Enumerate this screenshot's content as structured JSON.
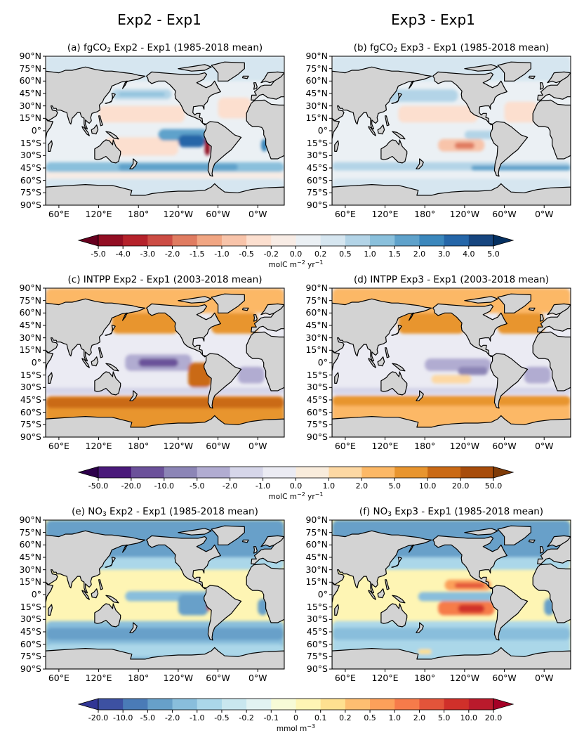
{
  "column_titles": [
    "Exp2 - Exp1",
    "Exp3 - Exp1"
  ],
  "chart_data": {
    "type": "heatmap",
    "projection": "PlateCarree",
    "lon_range": [
      40,
      400
    ],
    "lat_range": [
      -90,
      90
    ],
    "xticks": [
      "60°E",
      "120°E",
      "180°",
      "120°W",
      "60°W",
      "0°W"
    ],
    "xtick_values": [
      60,
      120,
      180,
      240,
      300,
      360
    ],
    "yticks": [
      "90°N",
      "75°N",
      "60°N",
      "45°N",
      "30°N",
      "15°N",
      "0°",
      "15°S",
      "30°S",
      "45°S",
      "60°S",
      "75°S",
      "90°S"
    ],
    "ytick_values": [
      90,
      75,
      60,
      45,
      30,
      15,
      0,
      -15,
      -30,
      -45,
      -60,
      -75,
      -90
    ],
    "land_color": "#d3d3d3",
    "panels": [
      {
        "id": "a",
        "label_prefix": "(a) fgCO",
        "label_sub": "2",
        "label_suffix": " Exp2 - Exp1 (1985-2018 mean)",
        "variable": "fgCO2",
        "colorbar": 0,
        "background_level": 8,
        "regions": [
          {
            "lon": [
              40,
              400
            ],
            "lat": [
              60,
              90
            ],
            "level": 9
          },
          {
            "lon": [
              40,
              400
            ],
            "lat": [
              -90,
              -58
            ],
            "level": 9
          },
          {
            "lon": [
              40,
              400
            ],
            "lat": [
              -50,
              -38
            ],
            "level": 11
          },
          {
            "lon": [
              150,
              330
            ],
            "lat": [
              -48,
              -40
            ],
            "level": 12
          },
          {
            "lon": [
              40,
              400
            ],
            "lat": [
              -58,
              -50
            ],
            "level": 7
          },
          {
            "lon": [
              140,
              230
            ],
            "lat": [
              38,
              50
            ],
            "level": 10
          },
          {
            "lon": [
              150,
              220
            ],
            "lat": [
              42,
              46
            ],
            "level": 11
          },
          {
            "lon": [
              120,
              250
            ],
            "lat": [
              10,
              30
            ],
            "level": 6
          },
          {
            "lon": [
              130,
              240
            ],
            "lat": [
              -30,
              -8
            ],
            "level": 6
          },
          {
            "lon": [
              210,
              285
            ],
            "lat": [
              -12,
              2
            ],
            "level": 12
          },
          {
            "lon": [
              240,
              280
            ],
            "lat": [
              -20,
              -5
            ],
            "level": 14
          },
          {
            "lon": [
              280,
              288
            ],
            "lat": [
              -30,
              -5
            ],
            "level": 0
          },
          {
            "lon": [
              300,
              350
            ],
            "lat": [
              15,
              40
            ],
            "level": 6
          },
          {
            "lon": [
              365,
              375
            ],
            "lat": [
              -25,
              -10
            ],
            "level": 13
          }
        ]
      },
      {
        "id": "b",
        "label_prefix": "(b) fgCO",
        "label_sub": "2",
        "label_suffix": " Exp3 - Exp1 (1985-2018 mean)",
        "variable": "fgCO2",
        "colorbar": 0,
        "background_level": 8,
        "regions": [
          {
            "lon": [
              40,
              400
            ],
            "lat": [
              60,
              90
            ],
            "level": 9
          },
          {
            "lon": [
              40,
              400
            ],
            "lat": [
              -90,
              -58
            ],
            "level": 9
          },
          {
            "lon": [
              40,
              400
            ],
            "lat": [
              -48,
              -38
            ],
            "level": 10
          },
          {
            "lon": [
              250,
              400
            ],
            "lat": [
              -48,
              -42
            ],
            "level": 12
          },
          {
            "lon": [
              120,
              230
            ],
            "lat": [
              35,
              50
            ],
            "level": 10
          },
          {
            "lon": [
              140,
              260
            ],
            "lat": [
              10,
              30
            ],
            "level": 6
          },
          {
            "lon": [
              200,
              270
            ],
            "lat": [
              -25,
              -10
            ],
            "level": 5
          },
          {
            "lon": [
              225,
              255
            ],
            "lat": [
              -22,
              -14
            ],
            "level": 3
          },
          {
            "lon": [
              240,
              285
            ],
            "lat": [
              -10,
              0
            ],
            "level": 10
          },
          {
            "lon": [
              300,
              350
            ],
            "lat": [
              10,
              35
            ],
            "level": 6
          }
        ]
      },
      {
        "id": "c",
        "label_prefix": "(c) INTPP Exp2 - Exp1 (2003-2018 mean)",
        "label_sub": "",
        "label_suffix": "",
        "variable": "INTPP",
        "colorbar": 1,
        "background_level": 5,
        "regions": [
          {
            "lon": [
              40,
              400
            ],
            "lat": [
              60,
              90
            ],
            "level": 8
          },
          {
            "lon": [
              40,
              400
            ],
            "lat": [
              -90,
              -40
            ],
            "level": 9
          },
          {
            "lon": [
              40,
              400
            ],
            "lat": [
              -55,
              -42
            ],
            "level": 10
          },
          {
            "lon": [
              140,
              240
            ],
            "lat": [
              35,
              60
            ],
            "level": 9
          },
          {
            "lon": [
              290,
              360
            ],
            "lat": [
              35,
              60
            ],
            "level": 9
          },
          {
            "lon": [
              40,
              400
            ],
            "lat": [
              -38,
              -30
            ],
            "level": 4
          },
          {
            "lon": [
              160,
              260
            ],
            "lat": [
              -10,
              10
            ],
            "level": 3
          },
          {
            "lon": [
              180,
              240
            ],
            "lat": [
              -5,
              5
            ],
            "level": 1
          },
          {
            "lon": [
              255,
              290
            ],
            "lat": [
              -30,
              0
            ],
            "level": 10
          },
          {
            "lon": [
              330,
              370
            ],
            "lat": [
              -25,
              -5
            ],
            "level": 3
          }
        ]
      },
      {
        "id": "d",
        "label_prefix": "(d) INTPP Exp3 - Exp1 (2003-2018 mean)",
        "label_sub": "",
        "label_suffix": "",
        "variable": "INTPP",
        "colorbar": 1,
        "background_level": 5,
        "regions": [
          {
            "lon": [
              40,
              400
            ],
            "lat": [
              60,
              90
            ],
            "level": 8
          },
          {
            "lon": [
              40,
              400
            ],
            "lat": [
              -90,
              -40
            ],
            "level": 8
          },
          {
            "lon": [
              40,
              400
            ],
            "lat": [
              -52,
              -40
            ],
            "level": 9
          },
          {
            "lon": [
              140,
              240
            ],
            "lat": [
              35,
              60
            ],
            "level": 9
          },
          {
            "lon": [
              290,
              360
            ],
            "lat": [
              35,
              60
            ],
            "level": 9
          },
          {
            "lon": [
              40,
              400
            ],
            "lat": [
              -38,
              -30
            ],
            "level": 4
          },
          {
            "lon": [
              180,
              280
            ],
            "lat": [
              -10,
              5
            ],
            "level": 3
          },
          {
            "lon": [
              230,
              275
            ],
            "lat": [
              -15,
              -5
            ],
            "level": 2
          },
          {
            "lon": [
              190,
              250
            ],
            "lat": [
              -25,
              -15
            ],
            "level": 7
          },
          {
            "lon": [
              330,
              370
            ],
            "lat": [
              -25,
              -5
            ],
            "level": 3
          }
        ]
      },
      {
        "id": "e",
        "label_prefix": "(e) NO",
        "label_sub": "3",
        "label_suffix": " Exp2 - Exp1 (1985-2018 mean)",
        "variable": "NO3",
        "colorbar": 2,
        "background_level": 8,
        "regions": [
          {
            "lon": [
              40,
              400
            ],
            "lat": [
              45,
              90
            ],
            "level": 2
          },
          {
            "lon": [
              40,
              400
            ],
            "lat": [
              30,
              45
            ],
            "level": 4
          },
          {
            "lon": [
              40,
              400
            ],
            "lat": [
              -90,
              -32
            ],
            "level": 3
          },
          {
            "lon": [
              40,
              400
            ],
            "lat": [
              -55,
              -40
            ],
            "level": 2
          },
          {
            "lon": [
              40,
              400
            ],
            "lat": [
              -75,
              -60
            ],
            "level": 4
          },
          {
            "lon": [
              160,
              290
            ],
            "lat": [
              -8,
              4
            ],
            "level": 3
          },
          {
            "lon": [
              240,
              285
            ],
            "lat": [
              -25,
              0
            ],
            "level": 2
          },
          {
            "lon": [
              283,
              288
            ],
            "lat": [
              -20,
              -8
            ],
            "level": 15
          },
          {
            "lon": [
              360,
              375
            ],
            "lat": [
              -25,
              -5
            ],
            "level": 2
          }
        ]
      },
      {
        "id": "f",
        "label_prefix": "(f) NO",
        "label_sub": "3",
        "label_suffix": " Exp3 - Exp1 (1985-2018 mean)",
        "variable": "NO3",
        "colorbar": 2,
        "background_level": 8,
        "regions": [
          {
            "lon": [
              40,
              400
            ],
            "lat": [
              45,
              90
            ],
            "level": 2
          },
          {
            "lon": [
              40,
              400
            ],
            "lat": [
              30,
              45
            ],
            "level": 4
          },
          {
            "lon": [
              40,
              400
            ],
            "lat": [
              -90,
              -32
            ],
            "level": 4
          },
          {
            "lon": [
              40,
              400
            ],
            "lat": [
              -55,
              -40
            ],
            "level": 3
          },
          {
            "lon": [
              170,
              290
            ],
            "lat": [
              -8,
              3
            ],
            "level": 3
          },
          {
            "lon": [
              210,
              280
            ],
            "lat": [
              5,
              18
            ],
            "level": 11
          },
          {
            "lon": [
              225,
              270
            ],
            "lat": [
              8,
              14
            ],
            "level": 13
          },
          {
            "lon": [
              200,
              285
            ],
            "lat": [
              -25,
              -8
            ],
            "level": 12
          },
          {
            "lon": [
              230,
              270
            ],
            "lat": [
              -22,
              -12
            ],
            "level": 14
          },
          {
            "lon": [
              170,
              190
            ],
            "lat": [
              -72,
              -66
            ],
            "level": 9
          },
          {
            "lon": [
              360,
              375
            ],
            "lat": [
              -25,
              -5
            ],
            "level": 2
          }
        ]
      }
    ],
    "colorbars": [
      {
        "ticks": [
          "-5.0",
          "-4.0",
          "-3.0",
          "-2.0",
          "-1.5",
          "-1.0",
          "-0.5",
          "-0.2",
          "0.0",
          "0.2",
          "0.5",
          "1.0",
          "1.5",
          "2.0",
          "3.0",
          "4.0",
          "5.0"
        ],
        "unit_main": "molC m",
        "unit_exp1": "−2",
        "unit_mid": " yr",
        "unit_exp2": "−1",
        "under": "#67001f",
        "over": "#053061",
        "colors": [
          "#920e23",
          "#b5222b",
          "#cc4c44",
          "#e07c61",
          "#f1a683",
          "#f8c4aa",
          "#fcdfcf",
          "#f8ece5",
          "#ebf0f4",
          "#d6e6f0",
          "#b3d4e7",
          "#8ac0dc",
          "#5fa2cb",
          "#3b87bc",
          "#2566a8",
          "#16457f"
        ]
      },
      {
        "ticks": [
          "-50.0",
          "-20.0",
          "-10.0",
          "-5.0",
          "-2.0",
          "-1.0",
          "0.0",
          "1.0",
          "2.0",
          "5.0",
          "10.0",
          "20.0",
          "50.0"
        ],
        "unit_main": "molC m",
        "unit_exp1": "−2",
        "unit_mid": " yr",
        "unit_exp2": "−1",
        "under": "#2d004b",
        "over": "#7f3b08",
        "colors": [
          "#4a1a7a",
          "#6b519a",
          "#8c85b6",
          "#b1acd1",
          "#d6d6e9",
          "#ebebf3",
          "#f9ecdc",
          "#fdd8a3",
          "#fcb866",
          "#e8952f",
          "#ca6a15",
          "#a74c0b"
        ]
      },
      {
        "ticks": [
          "-20.0",
          "-10.0",
          "-5.0",
          "-2.0",
          "-1.0",
          "-0.5",
          "-0.2",
          "-0.1",
          "0",
          "0.1",
          "0.2",
          "0.5",
          "1.0",
          "2.0",
          "5.0",
          "10.0",
          "20.0"
        ],
        "unit_main": "mmol m",
        "unit_exp1": "−3",
        "unit_mid": "",
        "unit_exp2": "",
        "under": "#313695",
        "over": "#a50026",
        "colors": [
          "#3d51a2",
          "#4a7bb7",
          "#67a0c9",
          "#89bedc",
          "#abd7e9",
          "#c9e7ef",
          "#e2f3f2",
          "#f7fbd7",
          "#fef5b4",
          "#fee090",
          "#fdbe71",
          "#fca05a",
          "#f67b4a",
          "#e3543a",
          "#d0302a",
          "#ba1a2c"
        ]
      }
    ]
  }
}
